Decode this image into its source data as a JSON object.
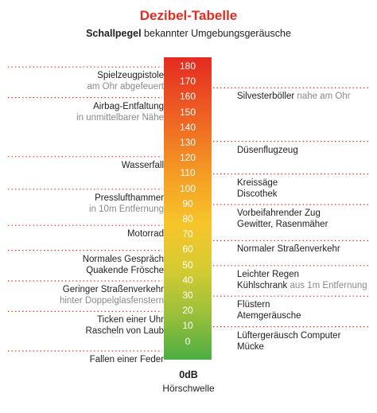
{
  "title": "Dezibel-Tabelle",
  "subtitle_bold": "Schallpegel",
  "subtitle_rest": " bekannter Umgebungsgeräusche",
  "chart_data": {
    "type": "table",
    "title": "Dezibel-Tabelle",
    "subtitle": "Schallpegel bekannter Umgebungsgeräusche",
    "scale_levels": [
      180,
      170,
      160,
      150,
      140,
      130,
      120,
      110,
      100,
      90,
      80,
      70,
      60,
      50,
      40,
      30,
      20,
      10,
      0
    ],
    "gradient_colors": [
      "#e52a22",
      "#ee6223",
      "#f49a24",
      "#f7c52a",
      "#d6cb32",
      "#9bbf3a",
      "#4cae43"
    ],
    "left_entries": [
      {
        "level": 170,
        "main": "Spielzeugpistole",
        "sub": "am Ohr abgefeuert"
      },
      {
        "level": 150,
        "main": "Airbag-Entfaltung",
        "sub": "in unmittelbarer Nähe"
      },
      {
        "level": 115,
        "main": "Wasserfall",
        "sub": ""
      },
      {
        "level": 90,
        "main": "Presslufthammer",
        "sub": "in 10m Entfernung"
      },
      {
        "level": 70,
        "main": "Motorrad",
        "sub": ""
      },
      {
        "level": 50,
        "main": "Normales Gespräch",
        "main2": "Quakende Frösche",
        "sub": ""
      },
      {
        "level": 30,
        "main": "Geringer Straßenverkehr",
        "sub": "hinter Doppelglasfenstern"
      },
      {
        "level": 10,
        "main": "Ticken einer Uhr",
        "main2": "Rascheln von Laub",
        "sub": ""
      },
      {
        "level": -10,
        "main": "Fallen einer Feder",
        "sub": ""
      }
    ],
    "right_entries": [
      {
        "level": 160,
        "main": "Silvesterböller",
        "sub_inline": " nahe am Ohr"
      },
      {
        "level": 125,
        "main": "Düsenflugzeug"
      },
      {
        "level": 100,
        "main": "Kreissäge",
        "main2": "Discothek"
      },
      {
        "level": 80,
        "main": "Vorbeifahrender Zug",
        "main2": "Gewitter, Rasenmäher"
      },
      {
        "level": 60,
        "main": "Normaler Straßenverkehr"
      },
      {
        "level": 40,
        "main": "Leichter Regen",
        "main2": "Kühlschrank",
        "sub_inline": " aus 1m Entfernung"
      },
      {
        "level": 20,
        "main": "Flüstern",
        "main2": "Atemgeräusche"
      },
      {
        "level": 0,
        "main": "Lüftergeräusch Computer",
        "main2": "Mücke"
      }
    ]
  },
  "footer": {
    "zero_label": "0dB",
    "threshold_label": "Hörschwelle"
  }
}
